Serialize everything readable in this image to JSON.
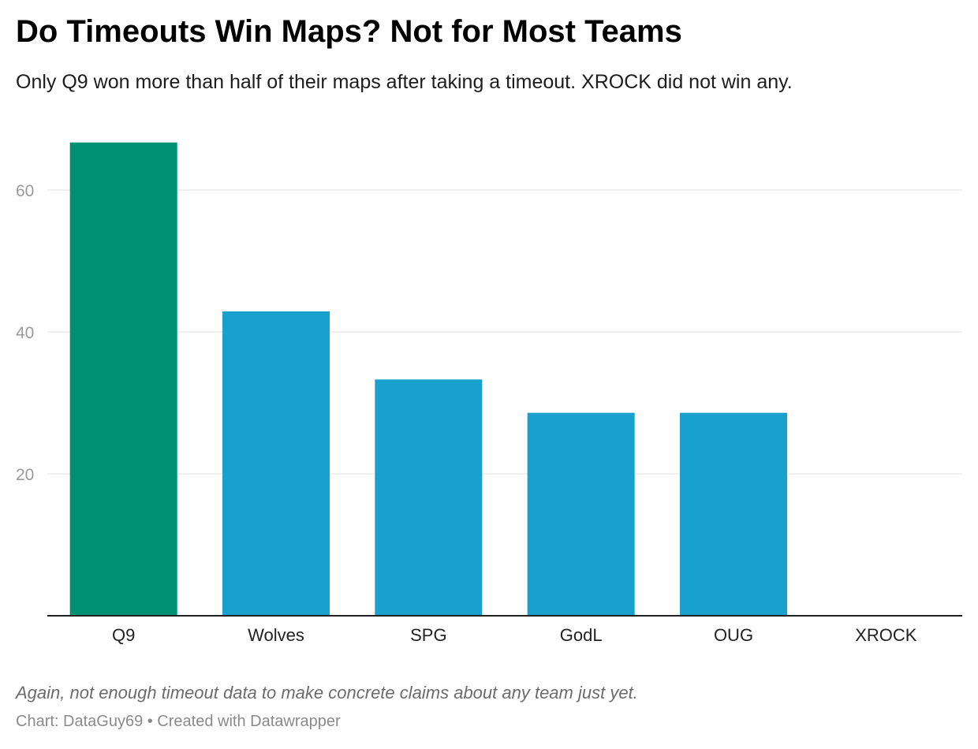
{
  "header": {
    "title": "Do Timeouts Win Maps? Not for Most Teams",
    "subtitle": "Only Q9 won more than half of their maps after taking a timeout. XROCK did not win any."
  },
  "footer": {
    "note": "Again, not enough timeout data to make concrete claims about any team just yet.",
    "credit": "Chart: DataGuy69 • Created with Datawrapper"
  },
  "colors": {
    "highlight": "#009074",
    "default": "#18a1cd",
    "gridline": "#e2e2e2",
    "axis": "#222222"
  },
  "chart_data": {
    "type": "bar",
    "categories": [
      "Q9",
      "Wolves",
      "SPG",
      "GodL",
      "OUG",
      "XROCK"
    ],
    "values": [
      66.7,
      42.9,
      33.3,
      28.6,
      28.6,
      0
    ],
    "highlighted": [
      "Q9"
    ],
    "title": "Do Timeouts Win Maps? Not for Most Teams",
    "xlabel": "",
    "ylabel": "",
    "ylim": [
      0,
      66.7
    ],
    "yticks": [
      20,
      40,
      60
    ],
    "grid": true,
    "legend": "none"
  }
}
